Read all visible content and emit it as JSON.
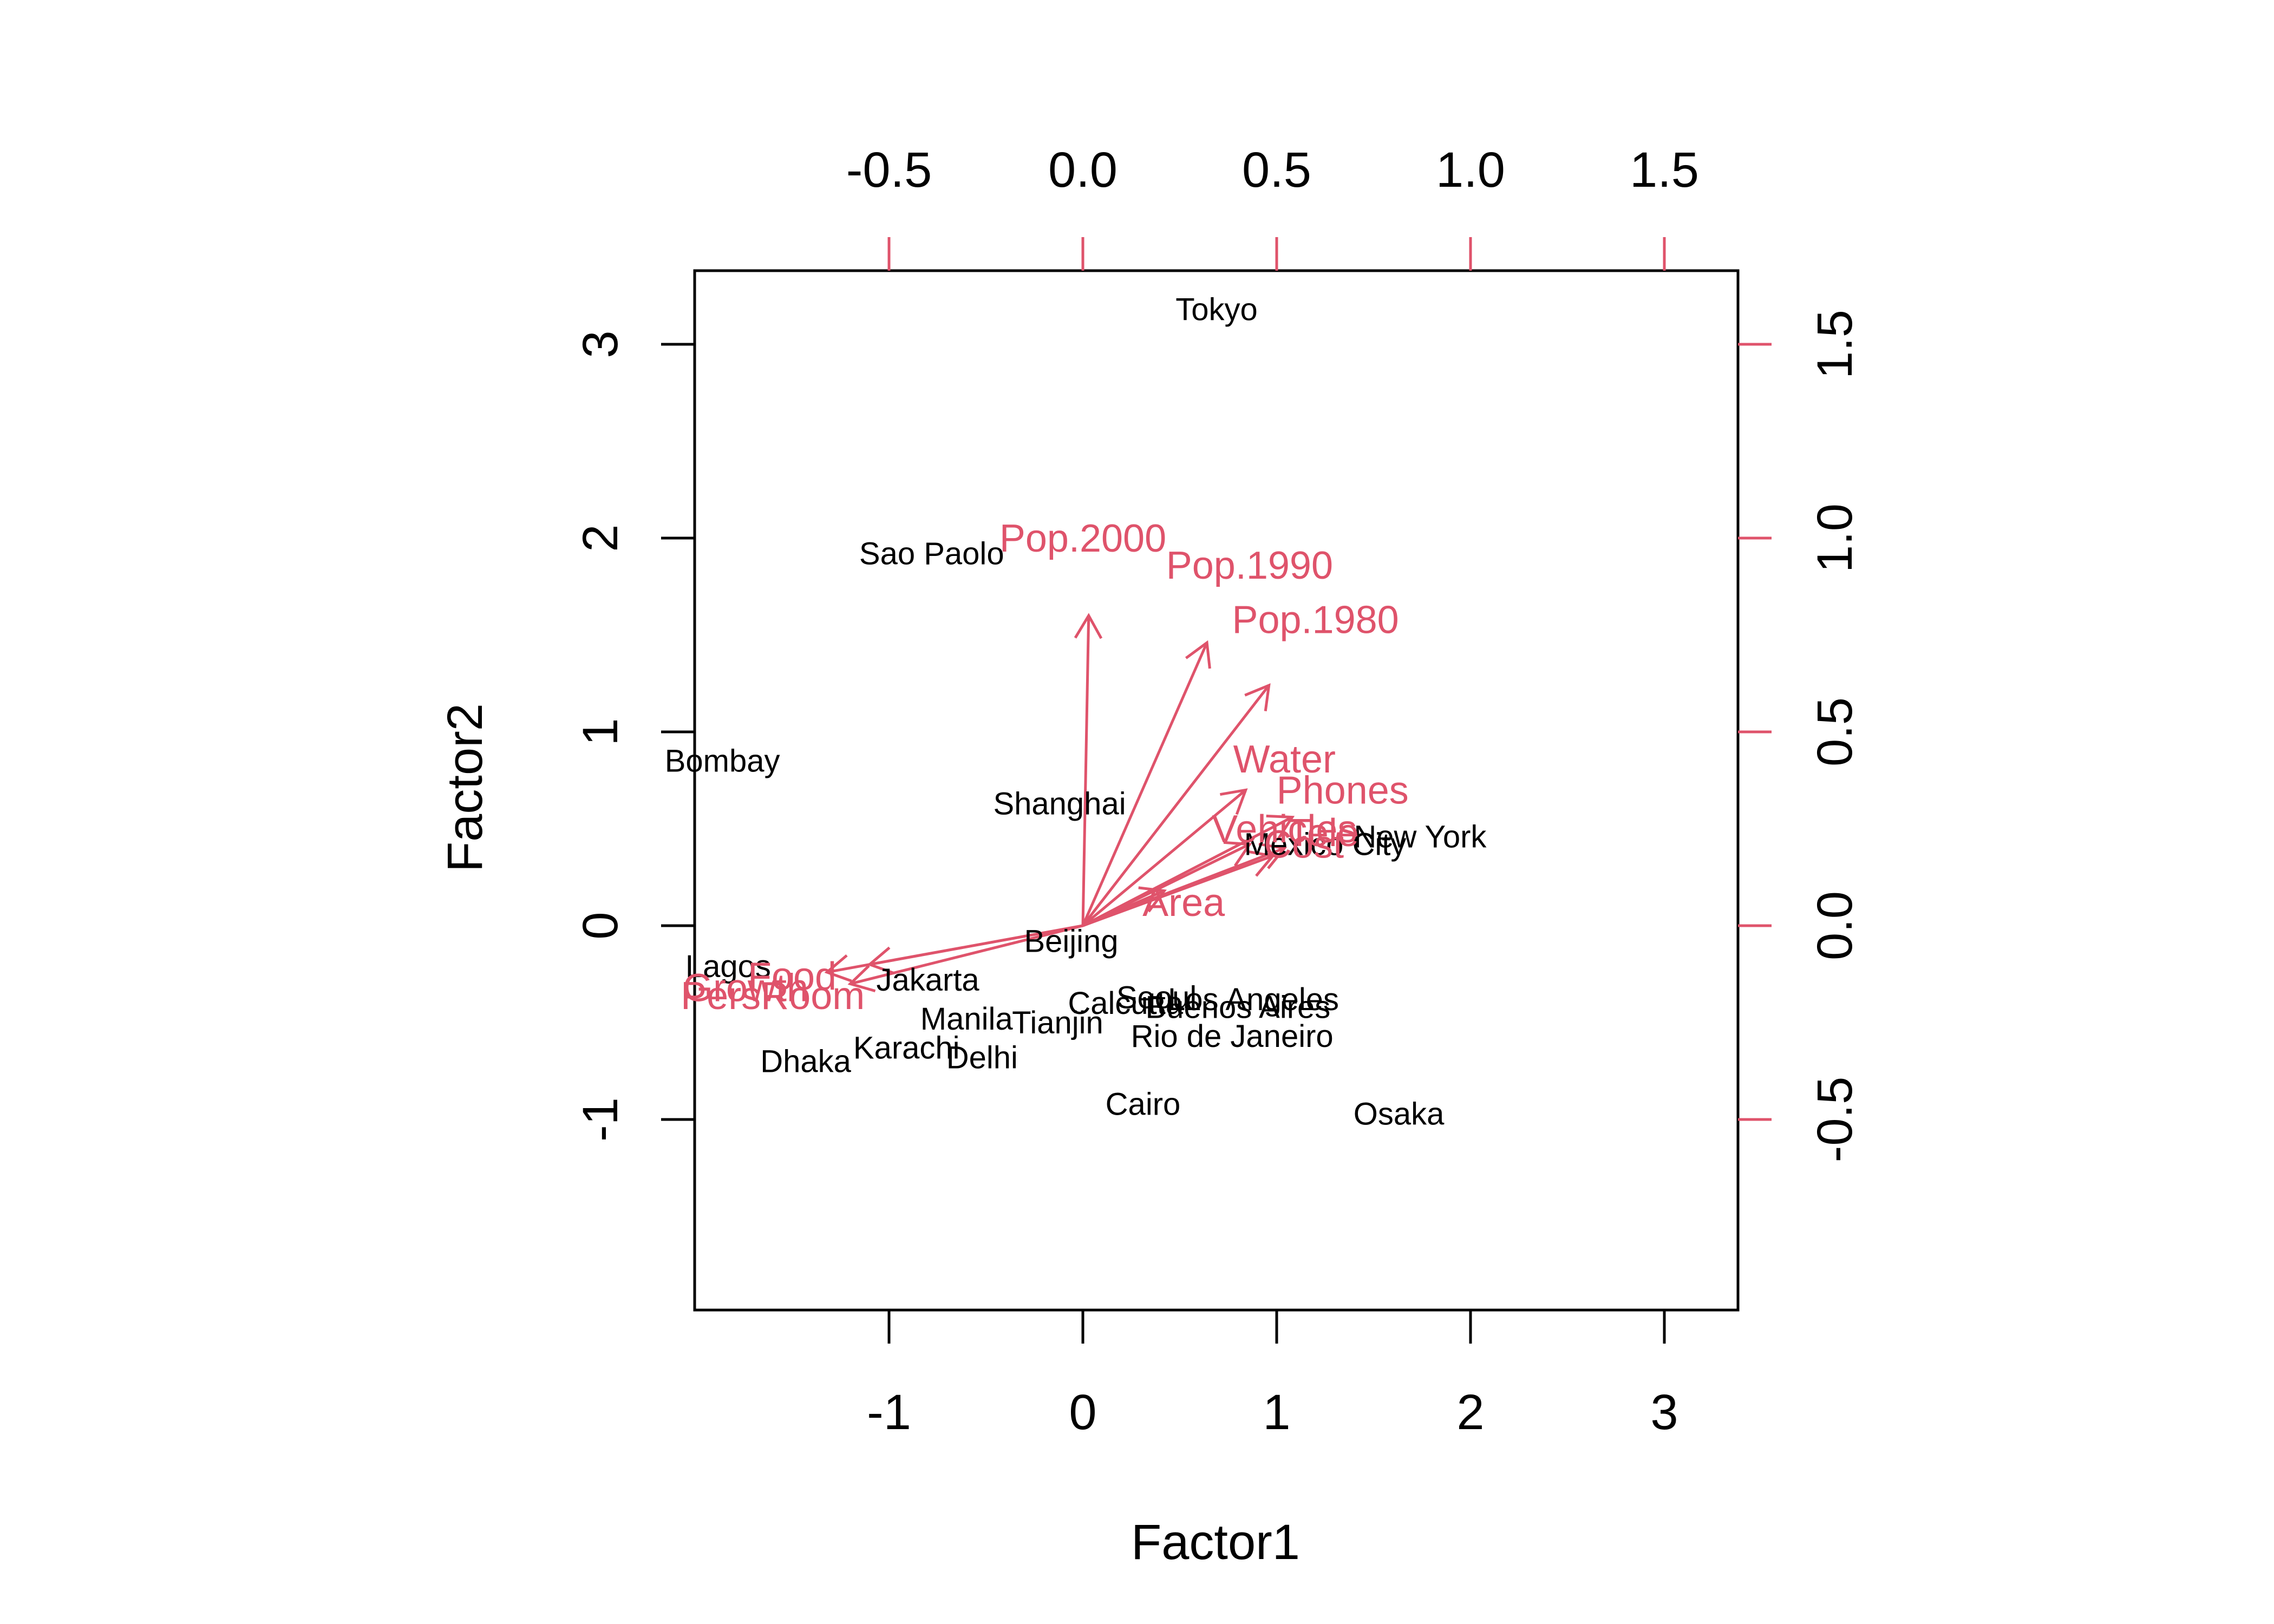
{
  "chart_data": {
    "type": "scatter",
    "subtype": "biplot",
    "xlabel": "Factor1",
    "ylabel": "Factor2",
    "xlim": [
      -1.97,
      3.4
    ],
    "ylim": [
      -1.97,
      3.4
    ],
    "x_ticks": [
      "-1",
      "0",
      "1",
      "2",
      "3"
    ],
    "y_ticks": [
      "-1",
      "0",
      "1",
      "2",
      "3"
    ],
    "top_ticks": [
      "-0.5",
      "0.0",
      "0.5",
      "1.0",
      "1.5"
    ],
    "right_ticks": [
      "-0.5",
      "0.0",
      "0.5",
      "1.0",
      "1.5"
    ],
    "loadings_scale": 2,
    "colors": {
      "points": "#000000",
      "loadings": "#DF536B",
      "axes": "#000000"
    },
    "observations": [
      {
        "label": "Tokyo",
        "x": 0.69,
        "y": 3.18
      },
      {
        "label": "Sao Paolo",
        "x": -0.78,
        "y": 1.92
      },
      {
        "label": "Bombay",
        "x": -1.86,
        "y": 0.85
      },
      {
        "label": "Shanghai",
        "x": -0.12,
        "y": 0.63
      },
      {
        "label": "New York",
        "x": 1.74,
        "y": 0.46
      },
      {
        "label": "Mexico City",
        "x": 1.25,
        "y": 0.42
      },
      {
        "label": "Beijing",
        "x": -0.06,
        "y": -0.08
      },
      {
        "label": "Lagos",
        "x": -1.83,
        "y": -0.21
      },
      {
        "label": "Jakarta",
        "x": -0.8,
        "y": -0.28
      },
      {
        "label": "Seoul",
        "x": 0.38,
        "y": -0.37
      },
      {
        "label": "Los Angeles",
        "x": 0.88,
        "y": -0.38
      },
      {
        "label": "Calcutta",
        "x": 0.22,
        "y": -0.4
      },
      {
        "label": "Buenos Aires",
        "x": 0.8,
        "y": -0.42
      },
      {
        "label": "Manila",
        "x": -0.6,
        "y": -0.48
      },
      {
        "label": "Tianjin",
        "x": -0.13,
        "y": -0.5
      },
      {
        "label": "Rio de Janeiro",
        "x": 0.77,
        "y": -0.57
      },
      {
        "label": "Karachi",
        "x": -0.91,
        "y": -0.63
      },
      {
        "label": "Delhi",
        "x": -0.52,
        "y": -0.68
      },
      {
        "label": "Dhaka",
        "x": -1.43,
        "y": -0.7
      },
      {
        "label": "Cairo",
        "x": 0.31,
        "y": -0.92
      },
      {
        "label": "Osaka",
        "x": 1.63,
        "y": -0.97
      }
    ],
    "loadings": [
      {
        "label": "Pop.2000",
        "x": 0.015,
        "y": 0.8,
        "label_x": 0.0,
        "label_y": 1.0
      },
      {
        "label": "Pop.1990",
        "x": 0.32,
        "y": 0.73,
        "label_x": 0.43,
        "label_y": 0.93
      },
      {
        "label": "Pop.1980",
        "x": 0.48,
        "y": 0.62,
        "label_x": 0.6,
        "label_y": 0.79
      },
      {
        "label": "Water",
        "x": 0.42,
        "y": 0.35,
        "label_x": 0.52,
        "label_y": 0.43
      },
      {
        "label": "Phones",
        "x": 0.54,
        "y": 0.28,
        "label_x": 0.67,
        "label_y": 0.35
      },
      {
        "label": "Vehicles",
        "x": 0.43,
        "y": 0.21,
        "label_x": 0.52,
        "label_y": 0.25
      },
      {
        "label": "Tele",
        "x": 0.52,
        "y": 0.2,
        "label_x": 0.62,
        "label_y": 0.24
      },
      {
        "label": "Cost",
        "x": 0.49,
        "y": 0.18,
        "label_x": 0.57,
        "label_y": 0.21
      },
      {
        "label": "Area",
        "x": 0.21,
        "y": 0.09,
        "label_x": 0.26,
        "label_y": 0.06
      },
      {
        "label": "Food",
        "x": -0.55,
        "y": -0.1,
        "label_x": -0.75,
        "label_y": -0.13
      },
      {
        "label": "Growth",
        "x": -0.66,
        "y": -0.12,
        "label_x": -0.87,
        "label_y": -0.16
      },
      {
        "label": "PersRoom",
        "x": -0.6,
        "y": -0.15,
        "label_x": -0.8,
        "label_y": -0.18
      }
    ]
  }
}
